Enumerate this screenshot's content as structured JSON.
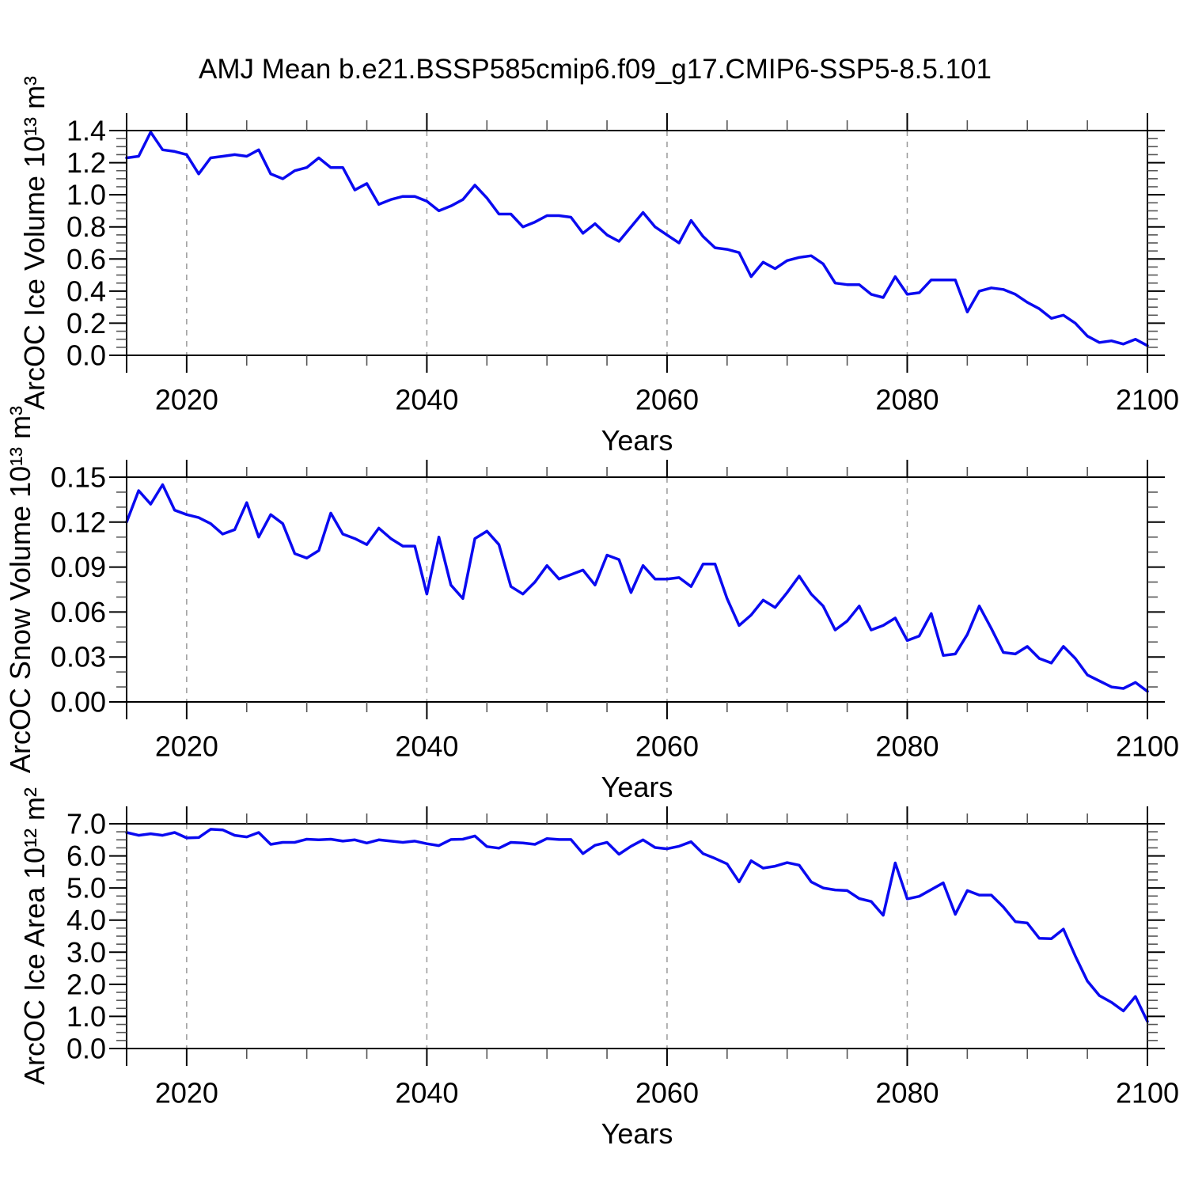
{
  "title": "AMJ Mean b.e21.BSSP585cmip6.f09_g17.CMIP6-SSP5-8.5.101",
  "line_color": "#0a0af0",
  "grid_color": "#999999",
  "axis_color": "#000000",
  "minor_tick_color": "#555555",
  "chart_data": [
    {
      "type": "line",
      "name": "arcoc-ice-volume",
      "ylabel": "ArcOC Ice Volume 10¹³ m³",
      "xlabel": "Years",
      "x_start": 2015,
      "x_end": 2100,
      "x_step": 1,
      "x_minor_step": 5,
      "xticks": [
        2020,
        2040,
        2060,
        2080,
        2100
      ],
      "xtick_labels": [
        "2020",
        "2040",
        "2060",
        "2080",
        "2100"
      ],
      "grid_x": [
        2020,
        2040,
        2060,
        2080
      ],
      "ylim": [
        0.0,
        1.4
      ],
      "ytick_values": [
        0.0,
        0.2,
        0.4,
        0.6,
        0.8,
        1.0,
        1.2,
        1.4
      ],
      "ytick_labels": [
        "0.0",
        "0.2",
        "0.4",
        "0.6",
        "0.8",
        "1.0",
        "1.2",
        "1.4"
      ],
      "y_minor_step": 0.05,
      "values": [
        1.23,
        1.24,
        1.39,
        1.28,
        1.27,
        1.25,
        1.13,
        1.23,
        1.24,
        1.25,
        1.24,
        1.28,
        1.13,
        1.1,
        1.15,
        1.17,
        1.23,
        1.17,
        1.17,
        1.03,
        1.07,
        0.94,
        0.97,
        0.99,
        0.99,
        0.96,
        0.9,
        0.93,
        0.97,
        1.06,
        0.98,
        0.88,
        0.88,
        0.8,
        0.83,
        0.87,
        0.87,
        0.86,
        0.76,
        0.82,
        0.75,
        0.71,
        0.8,
        0.89,
        0.8,
        0.75,
        0.7,
        0.84,
        0.74,
        0.67,
        0.66,
        0.64,
        0.49,
        0.58,
        0.54,
        0.59,
        0.61,
        0.62,
        0.57,
        0.45,
        0.44,
        0.44,
        0.38,
        0.36,
        0.49,
        0.38,
        0.39,
        0.47,
        0.47,
        0.47,
        0.27,
        0.4,
        0.42,
        0.41,
        0.38,
        0.33,
        0.29,
        0.23,
        0.25,
        0.2,
        0.12,
        0.08,
        0.09,
        0.07,
        0.1,
        0.06
      ]
    },
    {
      "type": "line",
      "name": "arcoc-snow-volume",
      "ylabel": "ArcOC Snow Volume 10¹³ m³",
      "xlabel": "Years",
      "x_start": 2015,
      "x_end": 2100,
      "x_step": 1,
      "x_minor_step": 5,
      "xticks": [
        2020,
        2040,
        2060,
        2080,
        2100
      ],
      "xtick_labels": [
        "2020",
        "2040",
        "2060",
        "2080",
        "2100"
      ],
      "grid_x": [
        2020,
        2040,
        2060,
        2080
      ],
      "ylim": [
        0.0,
        0.15
      ],
      "ytick_values": [
        0.0,
        0.03,
        0.06,
        0.09,
        0.12,
        0.15
      ],
      "ytick_labels": [
        "0.00",
        "0.03",
        "0.06",
        "0.09",
        "0.12",
        "0.15"
      ],
      "y_minor_step": 0.01,
      "values": [
        0.12,
        0.141,
        0.132,
        0.145,
        0.128,
        0.125,
        0.123,
        0.119,
        0.112,
        0.115,
        0.133,
        0.11,
        0.125,
        0.119,
        0.099,
        0.096,
        0.101,
        0.126,
        0.112,
        0.109,
        0.105,
        0.116,
        0.109,
        0.104,
        0.104,
        0.072,
        0.11,
        0.078,
        0.069,
        0.109,
        0.114,
        0.105,
        0.077,
        0.072,
        0.08,
        0.091,
        0.082,
        0.085,
        0.088,
        0.078,
        0.098,
        0.095,
        0.073,
        0.091,
        0.082,
        0.082,
        0.083,
        0.077,
        0.092,
        0.092,
        0.069,
        0.051,
        0.058,
        0.068,
        0.063,
        0.073,
        0.084,
        0.072,
        0.064,
        0.048,
        0.054,
        0.064,
        0.048,
        0.051,
        0.056,
        0.041,
        0.044,
        0.059,
        0.031,
        0.032,
        0.045,
        0.064,
        0.049,
        0.033,
        0.032,
        0.037,
        0.029,
        0.026,
        0.037,
        0.029,
        0.018,
        0.014,
        0.01,
        0.009,
        0.013,
        0.007
      ]
    },
    {
      "type": "line",
      "name": "arcoc-ice-area",
      "ylabel": "ArcOC Ice Area 10¹² m²",
      "xlabel": "Years",
      "x_start": 2015,
      "x_end": 2100,
      "x_step": 1,
      "x_minor_step": 5,
      "xticks": [
        2020,
        2040,
        2060,
        2080,
        2100
      ],
      "xtick_labels": [
        "2020",
        "2040",
        "2060",
        "2080",
        "2100"
      ],
      "grid_x": [
        2020,
        2040,
        2060,
        2080
      ],
      "ylim": [
        0.0,
        7.0
      ],
      "ytick_values": [
        0.0,
        1.0,
        2.0,
        3.0,
        4.0,
        5.0,
        6.0,
        7.0
      ],
      "ytick_labels": [
        "0.0",
        "1.0",
        "2.0",
        "3.0",
        "4.0",
        "5.0",
        "6.0",
        "7.0"
      ],
      "y_minor_step": 0.25,
      "values": [
        6.73,
        6.64,
        6.69,
        6.64,
        6.73,
        6.56,
        6.57,
        6.83,
        6.81,
        6.64,
        6.59,
        6.73,
        6.36,
        6.42,
        6.42,
        6.52,
        6.5,
        6.52,
        6.46,
        6.5,
        6.4,
        6.5,
        6.46,
        6.42,
        6.46,
        6.38,
        6.32,
        6.51,
        6.52,
        6.62,
        6.29,
        6.24,
        6.42,
        6.4,
        6.36,
        6.54,
        6.51,
        6.51,
        6.07,
        6.33,
        6.42,
        6.05,
        6.3,
        6.5,
        6.26,
        6.22,
        6.3,
        6.44,
        6.07,
        5.92,
        5.75,
        5.19,
        5.85,
        5.62,
        5.68,
        5.79,
        5.71,
        5.19,
        5.0,
        4.94,
        4.92,
        4.67,
        4.58,
        4.15,
        5.78,
        4.66,
        4.74,
        4.95,
        5.16,
        4.18,
        4.92,
        4.78,
        4.78,
        4.41,
        3.95,
        3.91,
        3.43,
        3.42,
        3.72,
        2.88,
        2.1,
        1.65,
        1.44,
        1.17,
        1.62,
        0.84
      ]
    }
  ]
}
